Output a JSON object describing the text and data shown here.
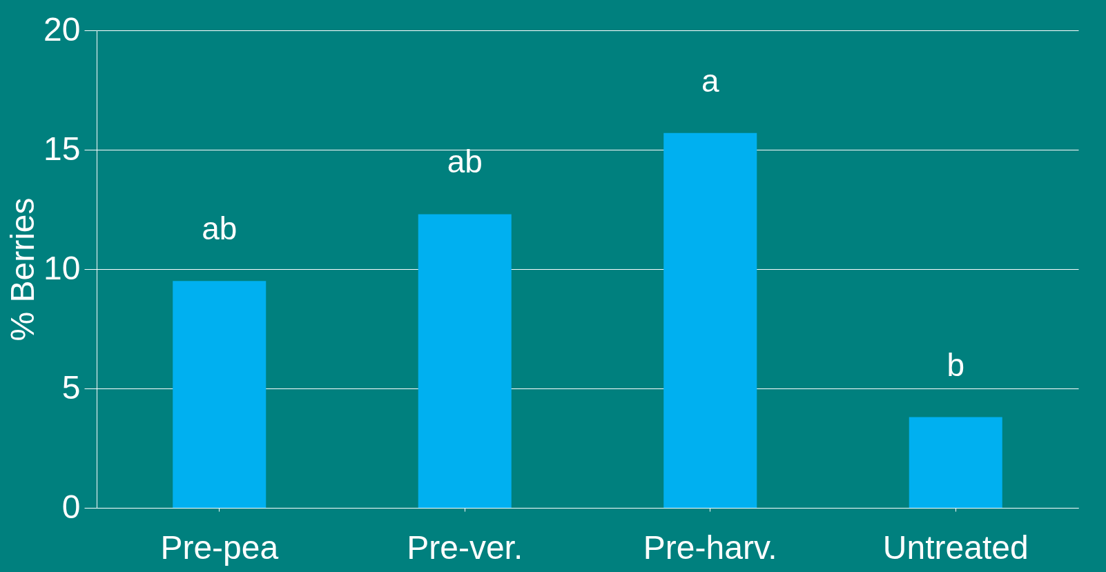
{
  "chart_data": {
    "type": "bar",
    "ylabel": "% Berries",
    "categories": [
      "Pre-pea",
      "Pre-ver.",
      "Pre-harv.",
      "Untreated"
    ],
    "values": [
      9.5,
      12.3,
      15.7,
      3.8
    ],
    "color": "#00b0f0",
    "ylim": [
      0,
      20
    ],
    "yticks": [
      0,
      5,
      10,
      15,
      20
    ],
    "grid": "y",
    "annotations": [
      {
        "text": "ab",
        "x": "Pre-pea",
        "y": 9.5
      },
      {
        "text": "ab",
        "x": "Pre-ver.",
        "y": 12.3
      },
      {
        "text": "a",
        "x": "Pre-harv.",
        "y": 15.7
      },
      {
        "text": "b",
        "x": "Untreated",
        "y": 3.8
      }
    ]
  }
}
